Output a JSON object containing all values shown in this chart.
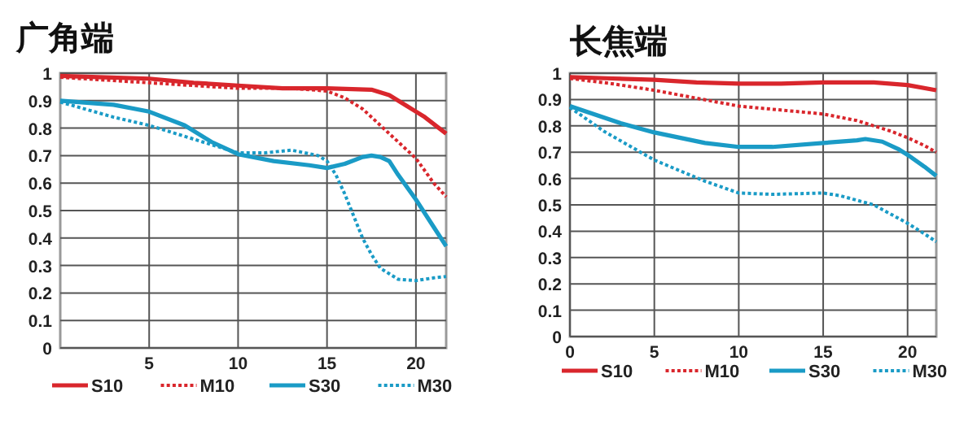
{
  "chart_data": [
    {
      "type": "line",
      "title": "广角端",
      "xlim": [
        0,
        21.7
      ],
      "xticks": [
        5,
        10,
        15,
        20
      ],
      "ylim": [
        0,
        1
      ],
      "yticks": [
        0,
        0.1,
        0.2,
        0.3,
        0.4,
        0.5,
        0.6,
        0.7,
        0.8,
        0.9,
        1
      ],
      "grid": true,
      "legend": "bottom",
      "series": [
        {
          "name": "S10",
          "color": "#d9262c",
          "line_style": "solid",
          "x": [
            0,
            2.5,
            5,
            7.5,
            10,
            12.5,
            15,
            17.5,
            18.5,
            19.5,
            20.5,
            21.7
          ],
          "values": [
            0.99,
            0.985,
            0.98,
            0.965,
            0.955,
            0.945,
            0.945,
            0.94,
            0.92,
            0.88,
            0.84,
            0.78
          ]
        },
        {
          "name": "M10",
          "color": "#d9262c",
          "line_style": "dotted",
          "x": [
            0,
            2.5,
            5,
            7.5,
            10,
            13,
            15,
            16,
            17,
            18,
            19,
            20,
            21,
            21.7
          ],
          "values": [
            0.985,
            0.975,
            0.965,
            0.955,
            0.945,
            0.945,
            0.935,
            0.91,
            0.87,
            0.81,
            0.75,
            0.69,
            0.6,
            0.55
          ]
        },
        {
          "name": "S30",
          "color": "#1a9bc6",
          "line_style": "solid",
          "x": [
            0,
            3,
            5,
            7,
            8.5,
            10,
            12,
            14,
            15,
            16,
            17,
            17.5,
            18,
            18.5,
            19,
            20,
            21,
            21.7
          ],
          "values": [
            0.9,
            0.885,
            0.86,
            0.81,
            0.75,
            0.705,
            0.68,
            0.665,
            0.655,
            0.67,
            0.695,
            0.7,
            0.695,
            0.68,
            0.63,
            0.54,
            0.44,
            0.37
          ]
        },
        {
          "name": "M30",
          "color": "#1a9bc6",
          "line_style": "dotted",
          "x": [
            0,
            3,
            5,
            8,
            10,
            11.5,
            13,
            14.5,
            15,
            15.5,
            16,
            16.5,
            17,
            17.5,
            18,
            19,
            20,
            21,
            21.7
          ],
          "values": [
            0.895,
            0.84,
            0.81,
            0.75,
            0.71,
            0.71,
            0.72,
            0.7,
            0.68,
            0.63,
            0.56,
            0.48,
            0.4,
            0.34,
            0.29,
            0.25,
            0.245,
            0.255,
            0.26
          ]
        }
      ]
    },
    {
      "type": "line",
      "title": "长焦端",
      "xlim": [
        0,
        21.7
      ],
      "xticks": [
        0,
        5,
        10,
        15,
        20
      ],
      "ylim": [
        0,
        1
      ],
      "yticks": [
        0,
        0.1,
        0.2,
        0.3,
        0.4,
        0.5,
        0.6,
        0.7,
        0.8,
        0.9,
        1
      ],
      "grid": true,
      "legend": "bottom",
      "series": [
        {
          "name": "S10",
          "color": "#d9262c",
          "line_style": "solid",
          "x": [
            0,
            2.5,
            5,
            7.5,
            10,
            12.5,
            15,
            18,
            20,
            21.7
          ],
          "values": [
            0.985,
            0.98,
            0.975,
            0.965,
            0.96,
            0.96,
            0.965,
            0.965,
            0.955,
            0.935
          ]
        },
        {
          "name": "M10",
          "color": "#d9262c",
          "line_style": "dotted",
          "x": [
            0,
            2.5,
            5,
            7.5,
            10,
            12.5,
            15,
            17,
            18,
            19,
            20,
            21,
            21.7
          ],
          "values": [
            0.98,
            0.96,
            0.935,
            0.905,
            0.875,
            0.86,
            0.845,
            0.82,
            0.8,
            0.78,
            0.755,
            0.725,
            0.7
          ]
        },
        {
          "name": "S30",
          "color": "#1a9bc6",
          "line_style": "solid",
          "x": [
            0,
            3,
            5,
            8,
            10,
            12,
            15,
            17,
            17.5,
            18.5,
            19.5,
            20,
            21,
            21.7
          ],
          "values": [
            0.875,
            0.81,
            0.775,
            0.735,
            0.72,
            0.72,
            0.735,
            0.745,
            0.75,
            0.74,
            0.71,
            0.69,
            0.645,
            0.61
          ]
        },
        {
          "name": "M30",
          "color": "#1a9bc6",
          "line_style": "dotted",
          "x": [
            0,
            2,
            5,
            8,
            10,
            12,
            15,
            16,
            18,
            20,
            21,
            21.7
          ],
          "values": [
            0.87,
            0.78,
            0.67,
            0.59,
            0.545,
            0.54,
            0.545,
            0.535,
            0.5,
            0.43,
            0.39,
            0.36
          ]
        }
      ]
    }
  ]
}
